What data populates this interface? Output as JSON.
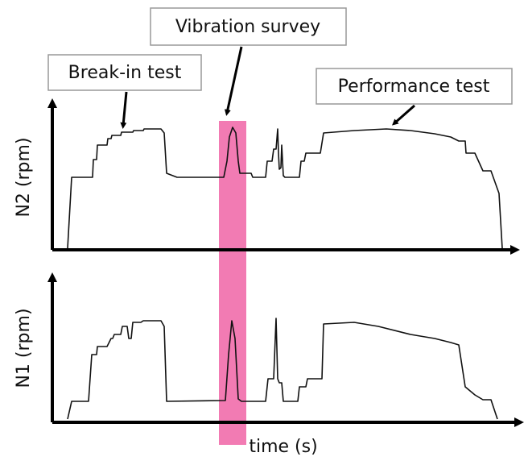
{
  "annotations": {
    "vibration": "Vibration survey",
    "break_in": "Break-in test",
    "performance": "Performance test"
  },
  "axes": {
    "top_label": "N2 (rpm)",
    "bottom_label": "N1 (rpm)",
    "x_label": "time (s)"
  }
}
